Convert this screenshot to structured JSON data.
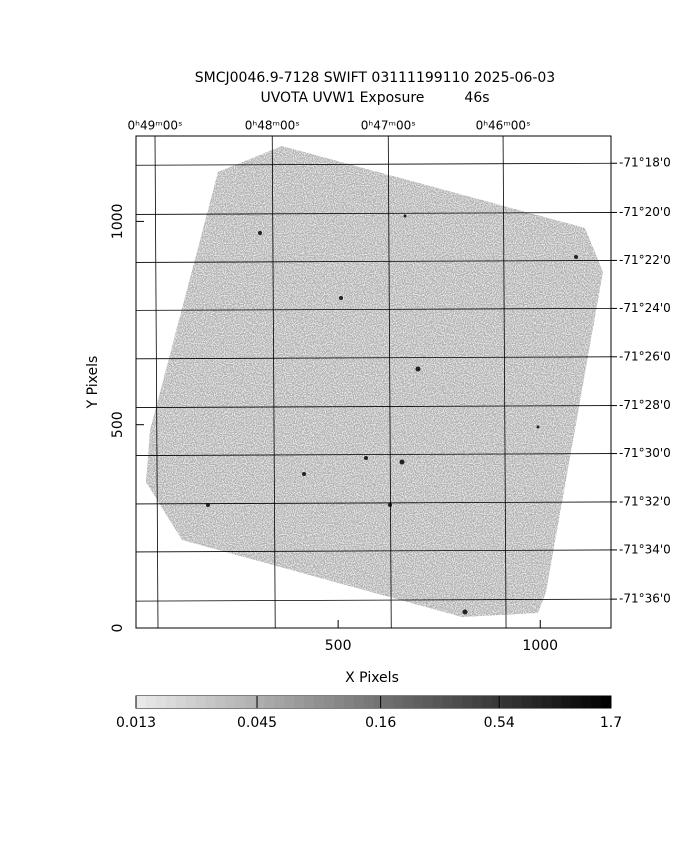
{
  "chart_data": {
    "type": "image",
    "title": "SMCJ0046.9-7128 SWIFT 03111199110 2025-06-03",
    "subtitle": "UVOTA UVW1 Exposure         46s",
    "xlabel": "X Pixels",
    "ylabel": "Y Pixels",
    "xlim": [
      0,
      1175
    ],
    "ylim": [
      0,
      1210
    ],
    "xticks": [
      500,
      1000
    ],
    "yticks": [
      0,
      500,
      1000
    ],
    "x2ticks": [
      {
        "value": 47,
        "label": "0ʰ49ᵐ00ˢ"
      },
      {
        "value": 337,
        "label": "0ʰ48ᵐ00ˢ"
      },
      {
        "value": 624,
        "label": "0ʰ47ᵐ00ˢ"
      },
      {
        "value": 908,
        "label": "0ʰ46ᵐ00ˢ"
      }
    ],
    "y2lim": [
      0,
      1210
    ],
    "y2ticks": [
      {
        "value": 1143,
        "label": "-71°18'0"
      },
      {
        "value": 1022,
        "label": "-71°20'0"
      },
      {
        "value": 904,
        "label": "-71°22'0"
      },
      {
        "value": 786,
        "label": "-71°24'0"
      },
      {
        "value": 667,
        "label": "-71°26'0"
      },
      {
        "value": 547,
        "label": "-71°28'0"
      },
      {
        "value": 429,
        "label": "-71°30'0"
      },
      {
        "value": 310,
        "label": "-71°32'0"
      },
      {
        "value": 192,
        "label": "-71°34'0"
      },
      {
        "value": 71,
        "label": "-71°36'0"
      }
    ],
    "grid": true,
    "colorbar": {
      "lim": [
        0.013,
        1.7
      ],
      "ticks": [
        0.013,
        0.045,
        0.16,
        0.54,
        1.7
      ],
      "log": true
    }
  }
}
